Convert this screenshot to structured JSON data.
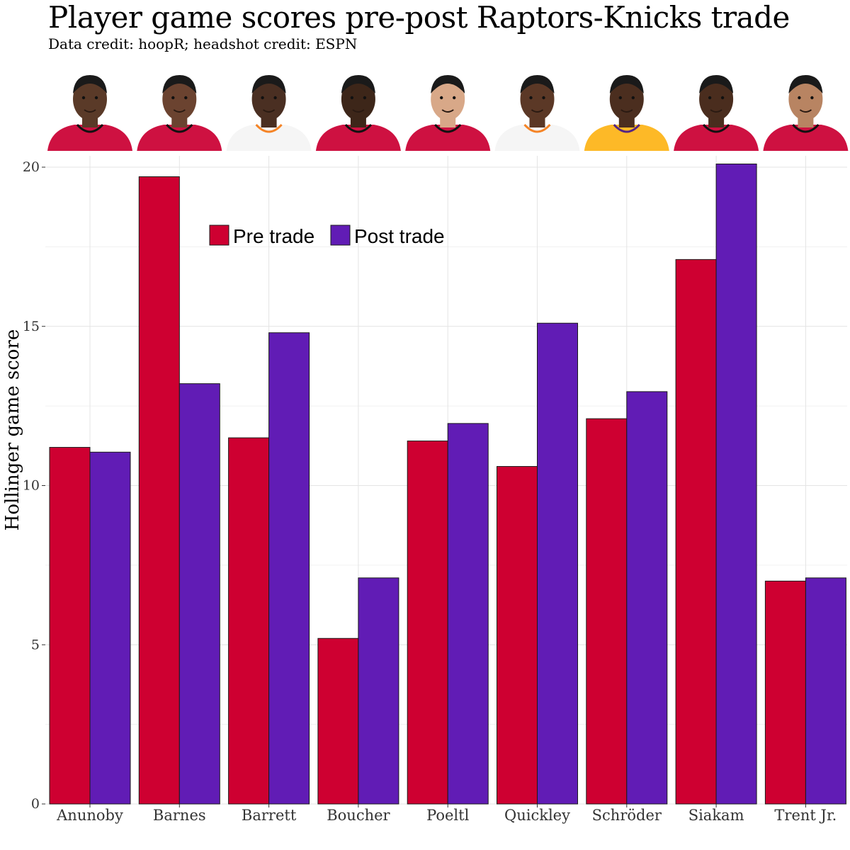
{
  "chart_data": {
    "type": "bar",
    "title": "Player game scores pre-post Raptors-Knicks trade",
    "subtitle": "Data credit: hoopR; headshot credit: ESPN",
    "xlabel": "",
    "ylabel": "Hollinger game score",
    "ylim": [
      0,
      20
    ],
    "yticks": [
      0,
      5,
      10,
      15,
      20
    ],
    "categories": [
      "Anunoby",
      "Barnes",
      "Barrett",
      "Boucher",
      "Poeltl",
      "Quickley",
      "Schröder",
      "Siakam",
      "Trent Jr."
    ],
    "series": [
      {
        "name": "Pre trade",
        "color": "#CE0031",
        "values": [
          11.2,
          19.7,
          11.5,
          5.2,
          11.4,
          10.6,
          12.1,
          17.1,
          7.0
        ]
      },
      {
        "name": "Post trade",
        "color": "#611CB5",
        "values": [
          11.05,
          13.2,
          14.8,
          7.1,
          11.95,
          15.1,
          12.95,
          20.1,
          7.1
        ]
      }
    ],
    "grid": true,
    "legend_position": "top-left",
    "headshots": [
      "raptors-red-jersey",
      "raptors-red-jersey",
      "knicks-white-jersey",
      "raptors-red-jersey",
      "raptors-red-jersey",
      "knicks-white-jersey",
      "lakers-gold-jersey",
      "raptors-red-jersey",
      "raptors-red-jersey"
    ]
  }
}
